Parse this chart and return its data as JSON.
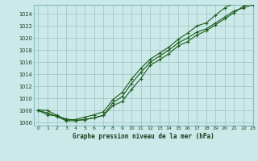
{
  "title": "Graphe pression niveau de la mer (hPa)",
  "bg_color": "#cce9e9",
  "grid_color": "#aacccc",
  "line_color": "#1a5c1a",
  "xlim": [
    -0.5,
    23
  ],
  "ylim": [
    1005.5,
    1025.5
  ],
  "yticks": [
    1006,
    1008,
    1010,
    1012,
    1014,
    1016,
    1018,
    1020,
    1022,
    1024
  ],
  "xticks": [
    0,
    1,
    2,
    3,
    4,
    5,
    6,
    7,
    8,
    9,
    10,
    11,
    12,
    13,
    14,
    15,
    16,
    17,
    18,
    19,
    20,
    21,
    22,
    23
  ],
  "series1": [
    1008.0,
    1007.3,
    1007.1,
    1006.6,
    1006.4,
    1006.5,
    1006.8,
    1007.2,
    1008.8,
    1009.5,
    1011.5,
    1013.3,
    1015.5,
    1016.4,
    1017.4,
    1018.7,
    1019.4,
    1020.5,
    1021.2,
    1022.2,
    1023.2,
    1024.2,
    1025.3,
    1025.8
  ],
  "series2": [
    1008.0,
    1007.6,
    1007.0,
    1006.3,
    1006.3,
    1006.5,
    1006.8,
    1007.2,
    1009.3,
    1010.3,
    1012.5,
    1014.3,
    1016.0,
    1017.0,
    1018.0,
    1019.2,
    1020.0,
    1021.0,
    1021.5,
    1022.5,
    1023.5,
    1024.5,
    1025.0,
    1025.5
  ],
  "series3": [
    1008.1,
    1008.0,
    1007.2,
    1006.4,
    1006.5,
    1006.9,
    1007.3,
    1007.8,
    1009.8,
    1011.0,
    1013.2,
    1015.0,
    1016.5,
    1017.5,
    1018.5,
    1019.8,
    1020.8,
    1022.0,
    1022.5,
    1023.8,
    1025.0,
    1025.8,
    1026.5,
    1026.8
  ]
}
